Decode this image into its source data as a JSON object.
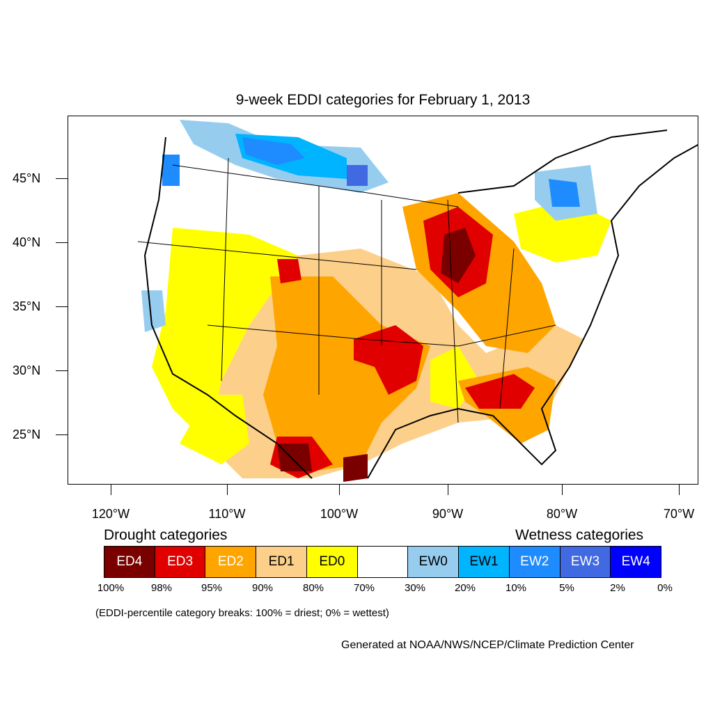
{
  "title": "9-week EDDI categories for February 1, 2013",
  "lat_labels": [
    "45°N",
    "40°N",
    "35°N",
    "30°N",
    "25°N"
  ],
  "lon_labels": [
    "120°W",
    "110°W",
    "100°W",
    "90°W",
    "80°W",
    "70°W"
  ],
  "legend": {
    "drought_title": "Drought categories",
    "wetness_title": "Wetness categories",
    "categories": [
      {
        "label": "ED4",
        "color": "#7a0000",
        "text_color": "#ffffff"
      },
      {
        "label": "ED3",
        "color": "#e10000",
        "text_color": "#ffffff"
      },
      {
        "label": "ED2",
        "color": "#ffa500",
        "text_color": "#ffffff"
      },
      {
        "label": "ED1",
        "color": "#fcd08a",
        "text_color": "#000000"
      },
      {
        "label": "ED0",
        "color": "#ffff00",
        "text_color": "#000000"
      },
      {
        "label": "",
        "color": "#ffffff",
        "text_color": "#000000"
      },
      {
        "label": "EW0",
        "color": "#96cdef",
        "text_color": "#000000"
      },
      {
        "label": "EW1",
        "color": "#00b4ff",
        "text_color": "#000000"
      },
      {
        "label": "EW2",
        "color": "#1e8cff",
        "text_color": "#ffffff"
      },
      {
        "label": "EW3",
        "color": "#4169e1",
        "text_color": "#ffffff"
      },
      {
        "label": "EW4",
        "color": "#0000ff",
        "text_color": "#ffffff"
      }
    ],
    "percent_breaks": [
      "100%",
      "98%",
      "95%",
      "90%",
      "80%",
      "70%",
      "30%",
      "20%",
      "10%",
      "5%",
      "2%",
      "0%"
    ]
  },
  "note": "(EDDI-percentile category breaks: 100% = driest; 0% = wettest)",
  "credit": "Generated at NOAA/NWS/NCEP/Climate Prediction Center"
}
